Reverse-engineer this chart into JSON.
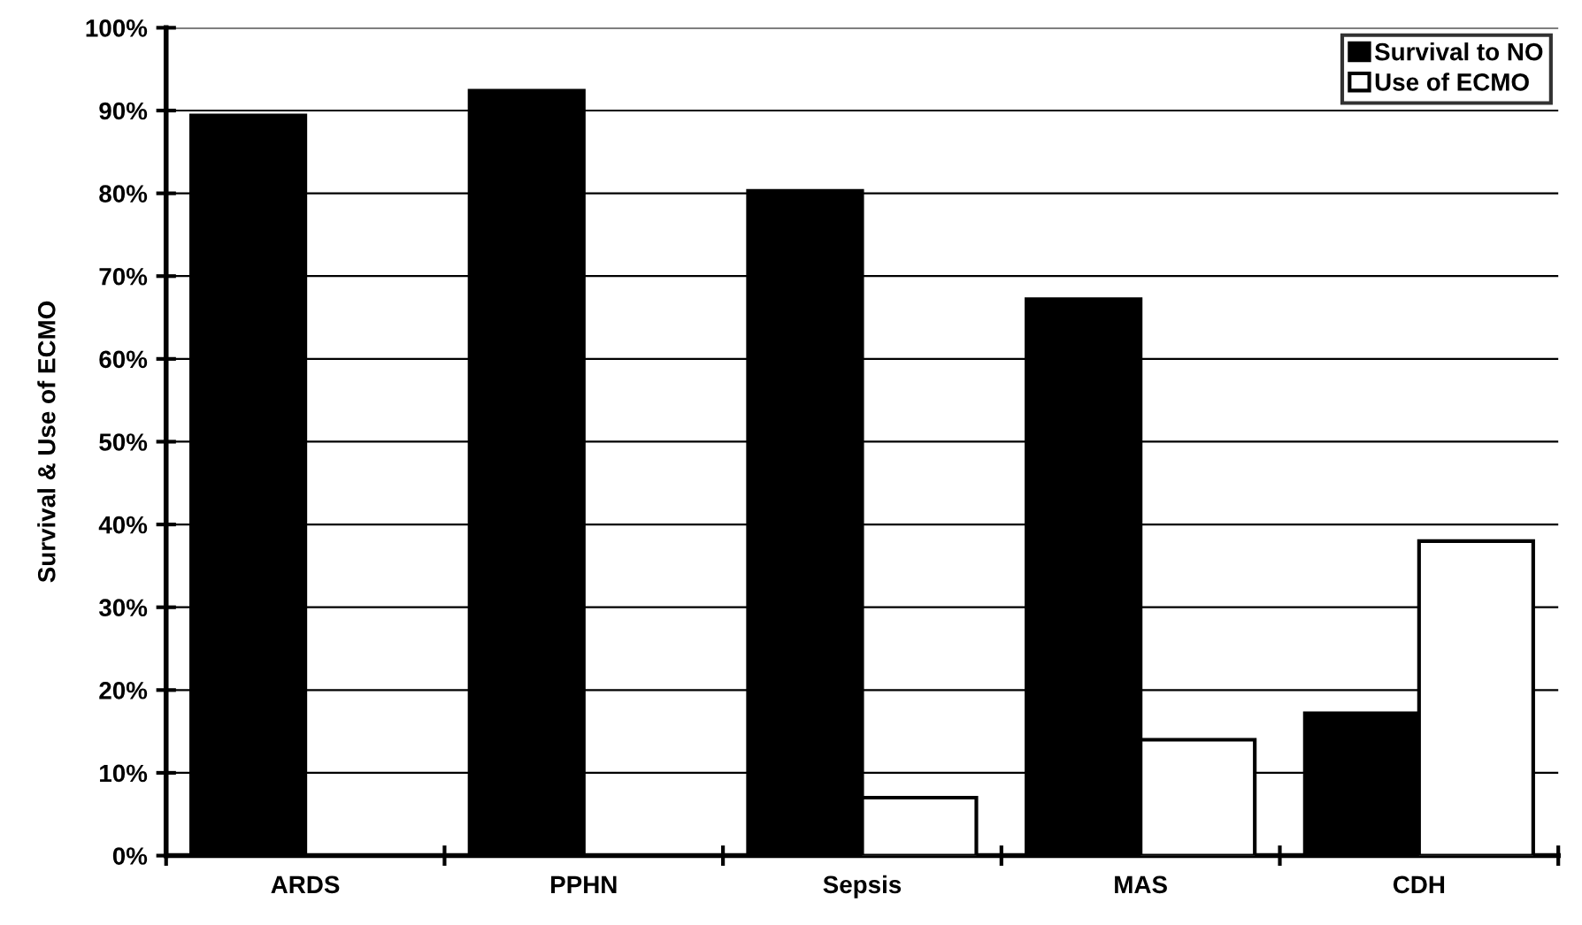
{
  "chart_data": {
    "type": "bar",
    "ylabel": "Survival & Use of ECMO",
    "categories": [
      "ARDS",
      "PPHN",
      "Sepsis",
      "MAS",
      "CDH"
    ],
    "series": [
      {
        "name": "Survival to NO",
        "color": "#000000",
        "values": [
          89.4,
          92.4,
          80.3,
          67.2,
          17.2
        ]
      },
      {
        "name": "Use of ECMO",
        "color": "#ffffff",
        "values": [
          0,
          0,
          7,
          14,
          38
        ]
      }
    ],
    "ylim": [
      0,
      100
    ],
    "yticks": [
      {
        "value": 0,
        "label": "0%"
      },
      {
        "value": 10,
        "label": "10%"
      },
      {
        "value": 20,
        "label": "20%"
      },
      {
        "value": 30,
        "label": "30%"
      },
      {
        "value": 40,
        "label": "40%"
      },
      {
        "value": 50,
        "label": "50%"
      },
      {
        "value": 60,
        "label": "60%"
      },
      {
        "value": 70,
        "label": "70%"
      },
      {
        "value": 80,
        "label": "80%"
      },
      {
        "value": 90,
        "label": "90%"
      },
      {
        "value": 100,
        "label": "100%"
      }
    ],
    "grid": "y",
    "legend": "top right"
  }
}
